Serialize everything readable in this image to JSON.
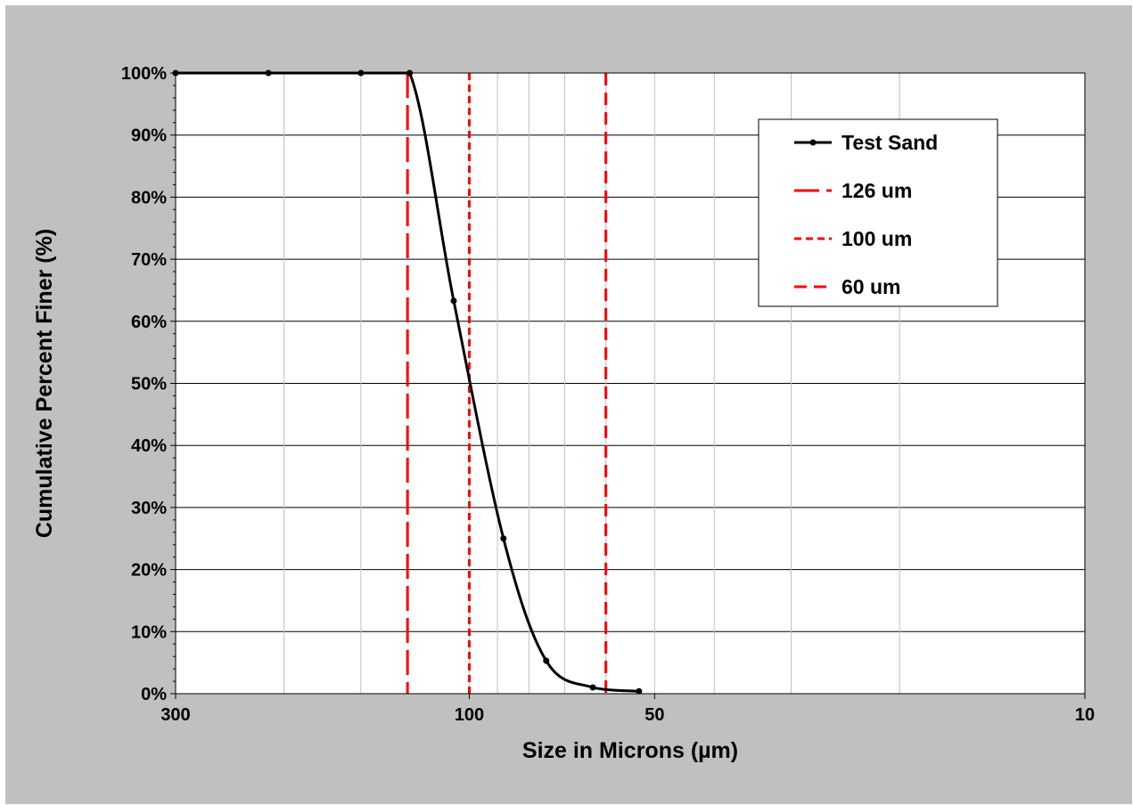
{
  "chart_data": {
    "type": "line",
    "title": "",
    "xlabel": "Size in Microns (µm)",
    "ylabel": "Cumulative Percent Finer (%)",
    "x_scale": "log",
    "x_reversed": true,
    "xlim": [
      300,
      10
    ],
    "ylim": [
      0,
      100
    ],
    "x_ticks": [
      {
        "value": 300,
        "label": "300"
      },
      {
        "value": 100,
        "label": "100"
      },
      {
        "value": 50,
        "label": "50"
      },
      {
        "value": 10,
        "label": "10"
      }
    ],
    "x_minor_gridlines": [
      200,
      150,
      90,
      80,
      70,
      60,
      40,
      30,
      20
    ],
    "y_ticks": [
      {
        "value": 0,
        "label": "0%"
      },
      {
        "value": 10,
        "label": "10%"
      },
      {
        "value": 20,
        "label": "20%"
      },
      {
        "value": 30,
        "label": "30%"
      },
      {
        "value": 40,
        "label": "40%"
      },
      {
        "value": 50,
        "label": "50%"
      },
      {
        "value": 60,
        "label": "60%"
      },
      {
        "value": 70,
        "label": "70%"
      },
      {
        "value": 80,
        "label": "80%"
      },
      {
        "value": 90,
        "label": "90%"
      },
      {
        "value": 100,
        "label": "100%"
      }
    ],
    "grid": true,
    "legend_position": "top-right",
    "series": [
      {
        "name": "Test Sand",
        "color": "#000000",
        "style": "solid-with-markers",
        "points": [
          {
            "x": 300,
            "y": 100
          },
          {
            "x": 212,
            "y": 100
          },
          {
            "x": 150,
            "y": 100
          },
          {
            "x": 125,
            "y": 100
          },
          {
            "x": 106,
            "y": 63.3
          },
          {
            "x": 88,
            "y": 25
          },
          {
            "x": 75,
            "y": 5.3
          },
          {
            "x": 63,
            "y": 1
          },
          {
            "x": 53,
            "y": 0.4
          }
        ]
      }
    ],
    "reference_lines": [
      {
        "name": "126 um",
        "x": 126,
        "color": "#ff0000",
        "dash": "long"
      },
      {
        "name": "100 um",
        "x": 100,
        "color": "#ff0000",
        "dash": "short"
      },
      {
        "name": "60 um",
        "x": 60,
        "color": "#ff0000",
        "dash": "medium"
      }
    ]
  }
}
